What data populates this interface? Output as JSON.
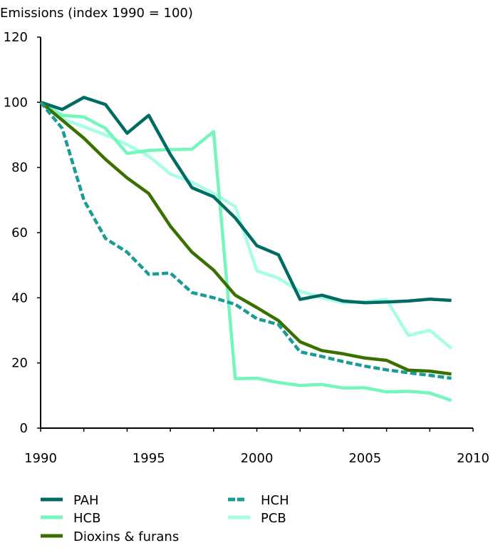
{
  "chart_data": {
    "type": "line",
    "title": "",
    "ylabel": "Emissions (index 1990 = 100)",
    "xlabel": "",
    "xlim": [
      1990,
      2010
    ],
    "ylim": [
      0,
      120
    ],
    "x_ticks": [
      1990,
      1995,
      2000,
      2005,
      2010
    ],
    "y_ticks": [
      0,
      20,
      40,
      60,
      80,
      100,
      120
    ],
    "x_tick_labels": [
      "1990",
      "1995",
      "2000",
      "2005",
      "2010"
    ],
    "y_tick_labels": [
      "0",
      "20",
      "40",
      "60",
      "80",
      "100",
      "120"
    ],
    "grid": false,
    "legend_position": "bottom",
    "x": [
      1990,
      1991,
      1992,
      1993,
      1994,
      1995,
      1996,
      1997,
      1998,
      1999,
      2000,
      2001,
      2002,
      2003,
      2004,
      2005,
      2006,
      2007,
      2008,
      2009
    ],
    "series": [
      {
        "name": "PAH",
        "color": "#006b63",
        "dashed": false,
        "values": [
          100,
          97.8,
          101.5,
          99.3,
          90.5,
          96,
          84,
          73.8,
          71,
          64.5,
          56,
          53.2,
          39.5,
          40.8,
          39,
          38.5,
          38.7,
          39,
          39.6,
          39.2
        ]
      },
      {
        "name": "HCB",
        "color": "#75f7bc",
        "dashed": false,
        "values": [
          100,
          96,
          95.5,
          92,
          84.3,
          85.2,
          85.5,
          85.6,
          91,
          15.2,
          15.3,
          14,
          13.1,
          13.4,
          12.3,
          12.4,
          11.1,
          11.3,
          10.8,
          8.5
        ]
      },
      {
        "name": "Dioxins & furans",
        "color": "#3a7000",
        "dashed": false,
        "values": [
          100,
          94.5,
          89,
          82.5,
          76.8,
          72,
          62,
          54,
          48.5,
          40.8,
          37,
          33,
          26.5,
          23.8,
          22.8,
          21.5,
          20.8,
          17.8,
          17.5,
          16.6
        ]
      },
      {
        "name": "HCH",
        "color": "#1a9c96",
        "dashed": true,
        "values": [
          100,
          92,
          70,
          58.2,
          54,
          47.2,
          47.6,
          41.6,
          40,
          38,
          33.6,
          31.8,
          23.4,
          22,
          20.4,
          19,
          17.9,
          17,
          16.2,
          15.3
        ]
      },
      {
        "name": "PCB",
        "color": "#a8fde6",
        "dashed": false,
        "values": [
          100,
          95,
          92.5,
          90,
          87,
          83.5,
          78,
          75.5,
          72,
          68,
          48.3,
          46,
          42,
          40,
          38.5,
          38.8,
          39.5,
          28.5,
          30,
          24.5
        ]
      }
    ]
  }
}
